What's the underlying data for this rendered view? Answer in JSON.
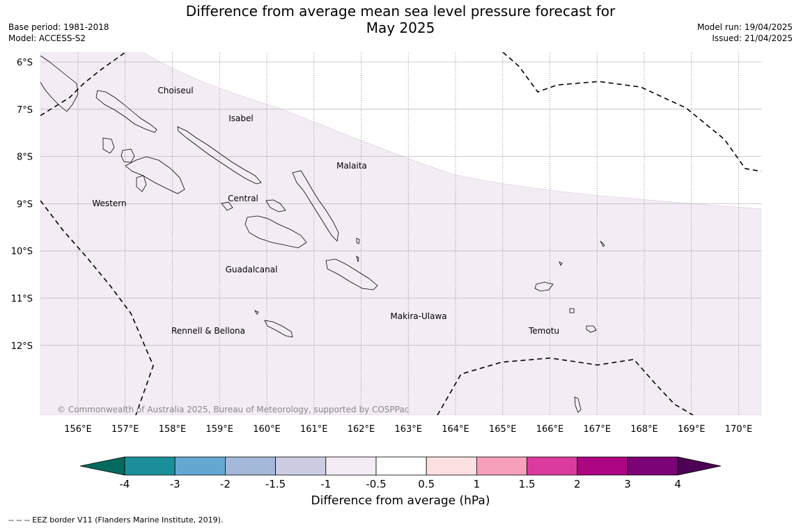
{
  "title_line1": "Difference from average mean sea level pressure forecast for",
  "title_line2": "May 2025",
  "meta_left": {
    "base_period": "Base period: 1981-2018",
    "model": "Model: ACCESS-S2"
  },
  "meta_right": {
    "model_run": "Model run: 19/04/2025",
    "issued": "Issued: 21/04/2025"
  },
  "latitudes": [
    "6°S",
    "7°S",
    "8°S",
    "9°S",
    "10°S",
    "11°S",
    "12°S"
  ],
  "longitudes": [
    "156°E",
    "157°E",
    "158°E",
    "159°E",
    "160°E",
    "161°E",
    "162°E",
    "163°E",
    "164°E",
    "165°E",
    "166°E",
    "167°E",
    "168°E",
    "169°E",
    "170°E"
  ],
  "places": [
    "Choiseul",
    "Isabel",
    "Malaita",
    "Western",
    "Central",
    "Guadalcanal",
    "Makira-Ulawa",
    "Rennell & Bellona",
    "Temotu"
  ],
  "copyright": "© Commonwealth of Australia 2025, Bureau of Meteorology, supported by COSPPac",
  "colorbar": {
    "title": "Difference from average (hPa)",
    "ticks": [
      "-4",
      "-3",
      "-2",
      "-1.5",
      "-1",
      "-0.5",
      "0.5",
      "1",
      "1.5",
      "2",
      "3",
      "4"
    ],
    "colors": [
      "#1a8f99",
      "#64a8d2",
      "#a4b8da",
      "#cccde2",
      "#f3ecf5",
      "#ffffff",
      "#fcdfe1",
      "#f7a0bb",
      "#db3b9f",
      "#ad0682",
      "#7c0277"
    ],
    "under_color": "#04695e",
    "over_color": "#4d0054"
  },
  "map_fill": {
    "region_value_range": "-1 to -0.5",
    "region_color": "#f3ecf5"
  },
  "footnote": "--  --  -- EEZ border V11 (Flanders Marine Institute, 2019)."
}
